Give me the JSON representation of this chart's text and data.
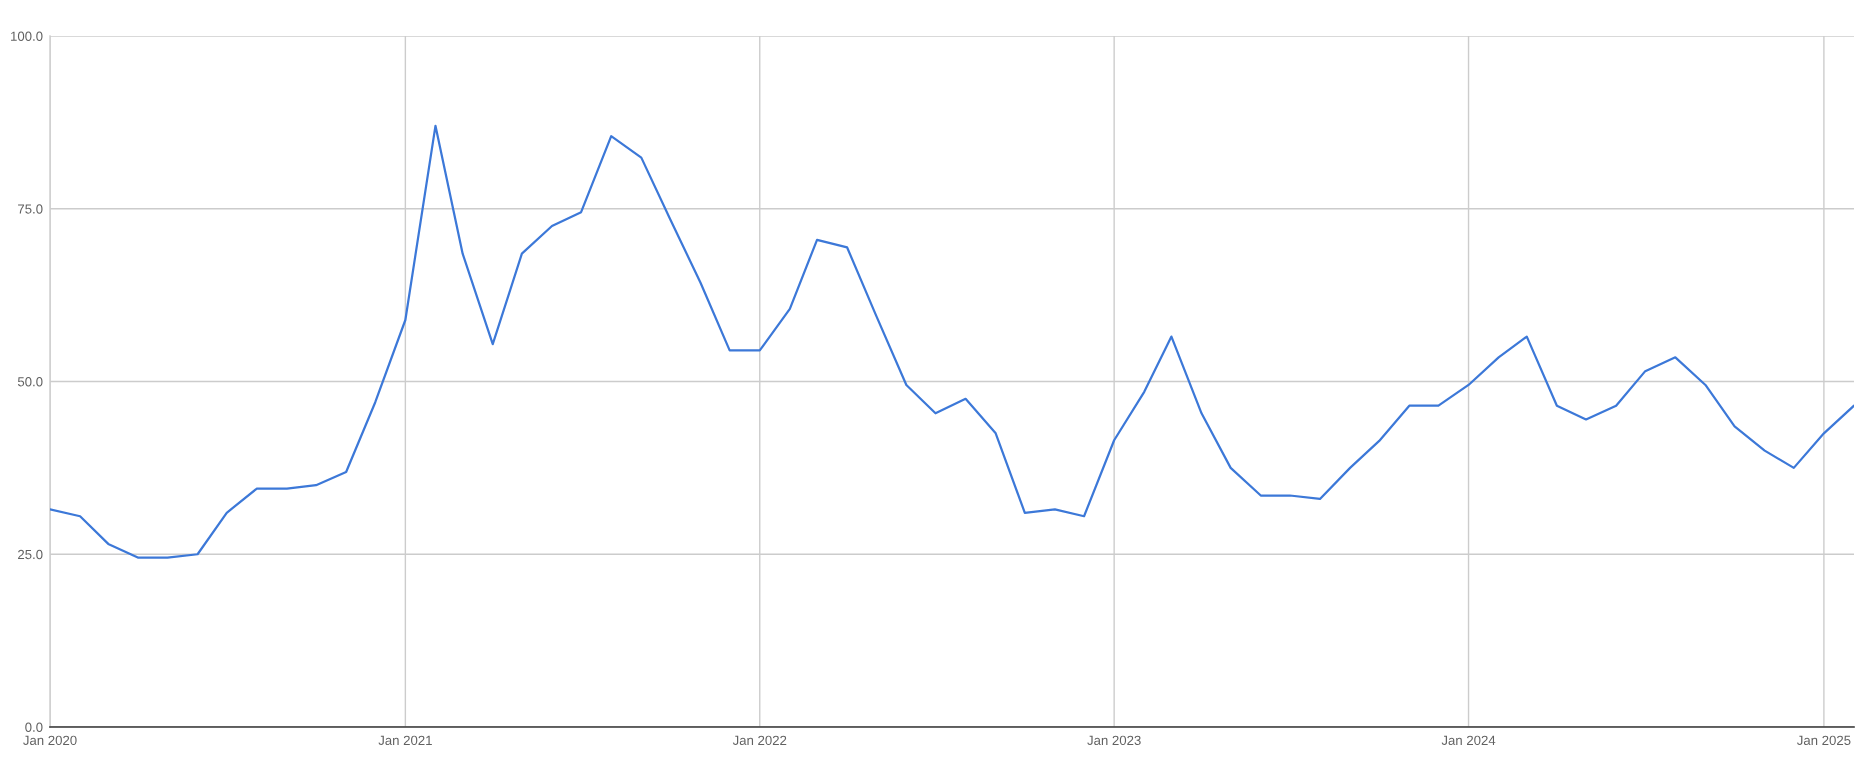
{
  "chart_data": {
    "type": "line",
    "x": [
      "2020-01",
      "2020-02",
      "2020-03",
      "2020-04",
      "2020-05",
      "2020-06",
      "2020-07",
      "2020-08",
      "2020-09",
      "2020-10",
      "2020-11",
      "2020-12",
      "2021-01",
      "2021-02",
      "2021-03",
      "2021-04",
      "2021-05",
      "2021-06",
      "2021-07",
      "2021-08",
      "2021-09",
      "2021-10",
      "2021-11",
      "2021-12",
      "2022-01",
      "2022-02",
      "2022-03",
      "2022-04",
      "2022-05",
      "2022-06",
      "2022-07",
      "2022-08",
      "2022-09",
      "2022-10",
      "2022-11",
      "2022-12",
      "2023-01",
      "2023-02",
      "2023-03",
      "2023-04",
      "2023-05",
      "2023-06",
      "2023-07",
      "2023-08",
      "2023-09",
      "2023-10",
      "2023-11",
      "2023-12",
      "2024-01",
      "2024-02",
      "2024-03",
      "2024-04",
      "2024-05",
      "2024-06",
      "2024-07",
      "2024-08",
      "2024-09",
      "2024-10",
      "2024-11",
      "2024-12",
      "2025-01",
      "2025-02"
    ],
    "series": [
      {
        "color": "#3c78d8",
        "values": [
          31.5,
          30.5,
          26.5,
          24.5,
          24.5,
          25.0,
          31.0,
          34.5,
          34.5,
          35.0,
          36.9,
          47.0,
          58.9,
          87.0,
          68.5,
          55.4,
          68.5,
          72.5,
          74.5,
          85.5,
          82.4,
          73.4,
          64.3,
          54.5,
          54.5,
          60.5,
          70.5,
          69.4,
          59.5,
          49.5,
          45.4,
          47.5,
          42.5,
          31.0,
          31.5,
          30.5,
          41.5,
          48.5,
          56.5,
          45.4,
          37.5,
          33.5,
          33.5,
          33.0,
          37.5,
          41.4,
          46.5,
          46.5,
          49.5,
          53.5,
          56.5,
          46.5,
          44.5,
          46.5,
          51.5,
          53.5,
          49.5,
          43.5,
          40.0,
          37.5,
          42.5,
          46.5
        ]
      }
    ],
    "xlim": [
      "2020-01",
      "2025-02"
    ],
    "xticks": [
      {
        "value": "2020-01",
        "label": "Jan 2020"
      },
      {
        "value": "2021-01",
        "label": "Jan 2021"
      },
      {
        "value": "2022-01",
        "label": "Jan 2022"
      },
      {
        "value": "2023-01",
        "label": "Jan 2023"
      },
      {
        "value": "2024-01",
        "label": "Jan 2024"
      },
      {
        "value": "2025-01",
        "label": "Jan 2025"
      }
    ],
    "ylim": [
      0,
      100
    ],
    "yticks": [
      {
        "value": 0,
        "label": "0.0"
      },
      {
        "value": 25,
        "label": "25.0"
      },
      {
        "value": 50,
        "label": "50.0"
      },
      {
        "value": 75,
        "label": "75.0"
      },
      {
        "value": 100,
        "label": "100.0"
      }
    ],
    "grid": true
  }
}
